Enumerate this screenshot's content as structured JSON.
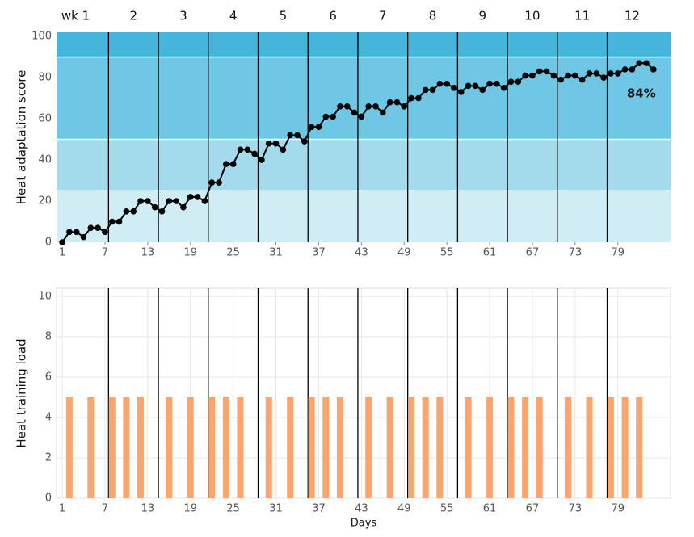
{
  "chart_data": [
    {
      "type": "line",
      "ylabel": "Heat adaptation score",
      "x": [
        1,
        2,
        3,
        4,
        5,
        6,
        7,
        8,
        9,
        10,
        11,
        12,
        13,
        14,
        15,
        16,
        17,
        18,
        19,
        20,
        21,
        22,
        23,
        24,
        25,
        26,
        27,
        28,
        29,
        30,
        31,
        32,
        33,
        34,
        35,
        36,
        37,
        38,
        39,
        40,
        41,
        42,
        43,
        44,
        45,
        46,
        47,
        48,
        49,
        50,
        51,
        52,
        53,
        54,
        55,
        56,
        57,
        58,
        59,
        60,
        61,
        62,
        63,
        64,
        65,
        66,
        67,
        68,
        69,
        70,
        71,
        72,
        73,
        74,
        75,
        76,
        77,
        78,
        79,
        80,
        81,
        82,
        83,
        84
      ],
      "values": [
        0,
        5,
        5,
        2.5,
        7,
        7,
        5,
        10,
        10,
        15,
        15,
        20,
        20,
        17,
        15,
        20,
        20,
        17,
        22,
        22,
        20,
        29,
        29,
        38,
        38,
        45,
        45,
        43,
        40,
        48,
        48,
        45,
        52,
        52,
        49,
        56,
        56,
        61,
        61,
        66,
        66,
        63,
        61,
        66,
        66,
        63,
        68,
        68,
        66,
        70,
        70,
        74,
        74,
        77,
        77,
        75,
        73,
        76,
        76,
        74,
        77,
        77,
        75,
        78,
        78,
        81,
        81,
        83,
        83,
        81,
        79,
        81,
        81,
        79,
        82,
        82,
        80,
        82,
        82,
        84,
        84,
        87,
        87,
        84
      ],
      "color": "#000000",
      "annotation": "84%",
      "week_labels": [
        "wk 1",
        "2",
        "3",
        "4",
        "5",
        "6",
        "7",
        "8",
        "9",
        "10",
        "11",
        "12"
      ],
      "week_lines": [
        7.5,
        14.5,
        21.5,
        28.5,
        35.5,
        42.5,
        49.5,
        56.5,
        63.5,
        70.5,
        77.5
      ],
      "band_edges": [
        0,
        25,
        50,
        90
      ],
      "band_colors": [
        "#d0ecf5",
        "#a3dbed",
        "#6fc6e5",
        "#45b5dc"
      ],
      "xlim": [
        0.2,
        86.4
      ],
      "xticks": [
        1,
        7,
        13,
        19,
        25,
        31,
        37,
        43,
        49,
        55,
        61,
        67,
        73,
        79
      ],
      "ylim": [
        0,
        102
      ],
      "yticks": [
        0,
        20,
        40,
        60,
        80,
        100
      ]
    },
    {
      "type": "bar",
      "ylabel": "Heat training load",
      "xlabel": "Days",
      "x": [
        2,
        5,
        8,
        10,
        12,
        16,
        19,
        22,
        24,
        26,
        30,
        33,
        36,
        38,
        40,
        44,
        47,
        50,
        52,
        54,
        58,
        61,
        64,
        66,
        68,
        72,
        75,
        78,
        80,
        82
      ],
      "values": [
        5,
        5,
        5,
        5,
        5,
        5,
        5,
        5,
        5,
        5,
        5,
        5,
        5,
        5,
        5,
        5,
        5,
        5,
        5,
        5,
        5,
        5,
        5,
        5,
        5,
        5,
        5,
        5,
        5,
        5
      ],
      "color": "#fba46e",
      "week_lines": [
        7.5,
        14.5,
        21.5,
        28.5,
        35.5,
        42.5,
        49.5,
        56.5,
        63.5,
        70.5,
        77.5
      ],
      "xlim": [
        0.2,
        86.4
      ],
      "xticks": [
        1,
        7,
        13,
        19,
        25,
        31,
        37,
        43,
        49,
        55,
        61,
        67,
        73,
        79
      ],
      "ylim": [
        0,
        10.4
      ],
      "yticks": [
        0,
        2,
        4,
        6,
        8,
        10
      ],
      "grid": true
    }
  ]
}
